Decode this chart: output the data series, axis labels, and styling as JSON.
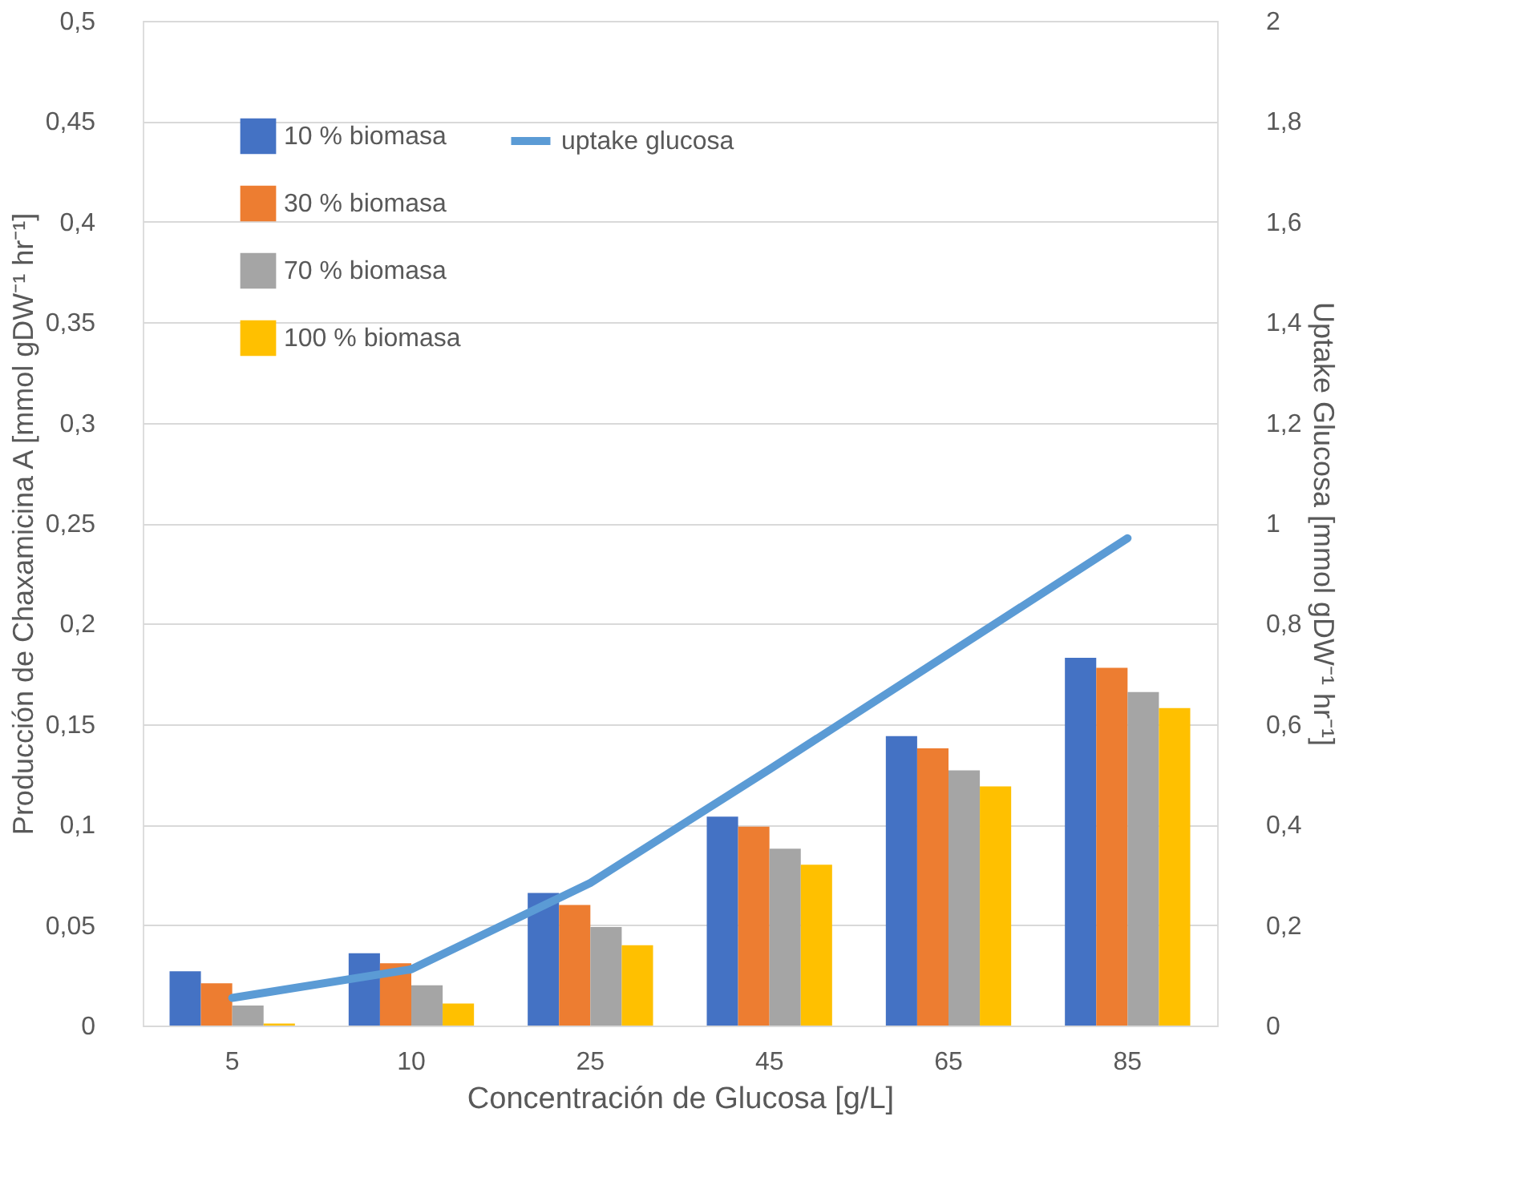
{
  "chart_data": {
    "type": "bar",
    "xlabel": "Concentración de Glucosa [g/L]",
    "ylabel": "Producción de Chaxamicina A [mmol gDW⁻¹ hr⁻¹]",
    "y2label": "Uptake Glucosa [mmol gDW⁻¹ hr⁻¹]",
    "categories": [
      "5",
      "10",
      "25",
      "45",
      "65",
      "85"
    ],
    "series": [
      {
        "name": "10 % biomasa",
        "color": "#4472c4",
        "values": [
          0.027,
          0.036,
          0.066,
          0.104,
          0.144,
          0.183
        ]
      },
      {
        "name": "30 % biomasa",
        "color": "#ed7d31",
        "values": [
          0.021,
          0.031,
          0.06,
          0.099,
          0.138,
          0.178
        ]
      },
      {
        "name": "70 % biomasa",
        "color": "#a5a5a5",
        "values": [
          0.01,
          0.02,
          0.049,
          0.088,
          0.127,
          0.166
        ]
      },
      {
        "name": "100 % biomasa",
        "color": "#ffc000",
        "values": [
          0.001,
          0.011,
          0.04,
          0.08,
          0.119,
          0.158
        ]
      },
      {
        "name": "uptake glucosa",
        "type": "line",
        "axis": "y2",
        "color": "#5b9bd5",
        "values": [
          0.055,
          0.112,
          0.284,
          0.51,
          0.74,
          0.97
        ]
      }
    ],
    "ylim": [
      0,
      0.5
    ],
    "yticks": [
      {
        "value": 0,
        "label": "0"
      },
      {
        "value": 0.05,
        "label": "0,05"
      },
      {
        "value": 0.1,
        "label": "0,1"
      },
      {
        "value": 0.15,
        "label": "0,15"
      },
      {
        "value": 0.2,
        "label": "0,2"
      },
      {
        "value": 0.25,
        "label": "0,25"
      },
      {
        "value": 0.3,
        "label": "0,3"
      },
      {
        "value": 0.35,
        "label": "0,35"
      },
      {
        "value": 0.4,
        "label": "0,4"
      },
      {
        "value": 0.45,
        "label": "0,45"
      },
      {
        "value": 0.5,
        "label": "0,5"
      }
    ],
    "y2lim": [
      0,
      2
    ],
    "y2ticks": [
      0,
      {
        "value": 0.2,
        "label": "0,2"
      },
      {
        "value": 0.4,
        "label": "0,4"
      },
      {
        "value": 0.6,
        "label": "0,6"
      },
      {
        "value": 0.8,
        "label": "0,8"
      },
      1,
      {
        "value": 1.2,
        "label": "1,2"
      },
      {
        "value": 1.4,
        "label": "1,4"
      },
      {
        "value": 1.6,
        "label": "1,6"
      },
      {
        "value": 1.8,
        "label": "1,8"
      },
      2
    ],
    "grid": "y",
    "legend": "top left"
  }
}
